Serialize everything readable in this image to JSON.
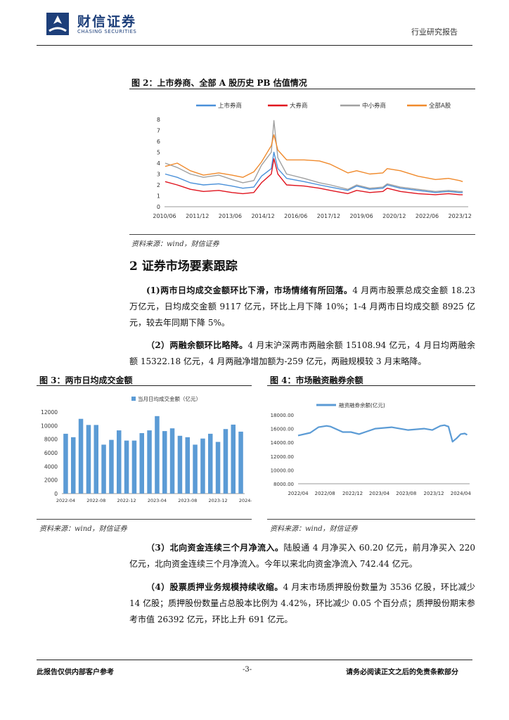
{
  "header": {
    "logo_cn": "财信证券",
    "logo_en": "CHASING SECURITIES",
    "report_type": "行业研究报告"
  },
  "figure2": {
    "title": "图 2：上市券商、全部 A 股历史 PB 估值情况",
    "source": "资料来源：wind，财信证券",
    "chart_data": {
      "type": "line",
      "legend_position": "top",
      "series": [
        {
          "name": "上市券商",
          "color": "#4a90d9",
          "x": [
            2010.45,
            2011.0,
            2011.6,
            2012.2,
            2012.9,
            2013.5,
            2014.0,
            2014.5,
            2014.85,
            2015.3,
            2015.42,
            2015.6,
            2016.0,
            2016.8,
            2017.5,
            2018.0,
            2018.8,
            2019.2,
            2019.8,
            2020.4,
            2020.6,
            2021.2,
            2022.0,
            2022.8,
            2023.4,
            2023.9,
            2024.05
          ],
          "y": [
            3.0,
            2.7,
            2.2,
            2.0,
            2.1,
            1.9,
            1.7,
            1.8,
            2.8,
            3.5,
            5.0,
            3.5,
            2.6,
            2.3,
            2.0,
            1.8,
            1.5,
            1.9,
            1.6,
            1.7,
            2.0,
            1.7,
            1.5,
            1.3,
            1.4,
            1.3,
            1.3
          ]
        },
        {
          "name": "大券商",
          "color": "#e0141e",
          "x": [
            2010.45,
            2011.0,
            2011.6,
            2012.2,
            2012.9,
            2013.5,
            2014.0,
            2014.5,
            2014.85,
            2015.3,
            2015.42,
            2015.6,
            2016.0,
            2016.8,
            2017.5,
            2018.0,
            2018.8,
            2019.2,
            2019.8,
            2020.4,
            2020.6,
            2021.2,
            2022.0,
            2022.8,
            2023.4,
            2023.9,
            2024.05
          ],
          "y": [
            2.3,
            2.0,
            1.6,
            1.4,
            1.5,
            1.3,
            1.2,
            1.3,
            2.2,
            3.0,
            4.4,
            3.0,
            2.0,
            1.9,
            1.7,
            1.5,
            1.2,
            1.5,
            1.3,
            1.4,
            1.7,
            1.4,
            1.2,
            1.1,
            1.2,
            1.1,
            1.1
          ]
        },
        {
          "name": "中小券商",
          "color": "#a0a0a0",
          "x": [
            2010.45,
            2011.0,
            2011.6,
            2012.2,
            2012.9,
            2013.5,
            2014.0,
            2014.5,
            2014.85,
            2015.3,
            2015.42,
            2015.6,
            2016.0,
            2016.8,
            2017.5,
            2018.0,
            2018.8,
            2019.2,
            2019.8,
            2020.4,
            2020.6,
            2021.2,
            2022.0,
            2022.8,
            2023.4,
            2023.9,
            2024.05
          ],
          "y": [
            4.0,
            3.6,
            3.0,
            2.7,
            2.9,
            2.5,
            2.2,
            2.4,
            3.8,
            5.0,
            7.9,
            4.5,
            3.0,
            2.6,
            2.2,
            2.0,
            1.6,
            2.0,
            1.7,
            1.8,
            2.1,
            1.8,
            1.6,
            1.4,
            1.5,
            1.4,
            1.4
          ]
        },
        {
          "name": "全部A股",
          "color": "#f08a2c",
          "x": [
            2010.45,
            2011.0,
            2011.6,
            2012.2,
            2012.9,
            2013.5,
            2014.0,
            2014.5,
            2014.85,
            2015.3,
            2015.42,
            2015.6,
            2016.0,
            2016.8,
            2017.5,
            2018.0,
            2018.8,
            2019.2,
            2019.8,
            2020.4,
            2020.6,
            2021.2,
            2022.0,
            2022.8,
            2023.4,
            2023.9,
            2024.05
          ],
          "y": [
            3.7,
            4.0,
            3.3,
            2.9,
            3.1,
            2.9,
            2.7,
            3.2,
            4.1,
            5.6,
            6.6,
            5.2,
            4.3,
            4.3,
            4.2,
            3.9,
            3.1,
            3.3,
            3.0,
            3.1,
            3.5,
            3.3,
            2.8,
            2.5,
            2.6,
            2.4,
            2.3
          ]
        }
      ],
      "x_tick_labels": [
        "2010/06",
        "2011/12",
        "2013/06",
        "2014/12",
        "2016/06",
        "2017/12",
        "2019/06",
        "2020/12",
        "2022/06",
        "2023/12"
      ],
      "x_tick_values": [
        2010.42,
        2011.92,
        2013.42,
        2014.92,
        2016.42,
        2017.92,
        2019.42,
        2020.92,
        2022.42,
        2023.92
      ],
      "y_tick_labels": [
        "0",
        "1",
        "2",
        "3",
        "4",
        "5",
        "6",
        "7",
        "8"
      ],
      "xlim": [
        2010.42,
        2024.3
      ],
      "ylim": [
        0,
        8
      ]
    }
  },
  "section2": {
    "title": "2 证券市场要素跟踪",
    "p1_bold": "(1)两市日均成交金额环比下滑，市场情绪有所回落。",
    "p1_text": "4 月两市股票总成交金额 18.23 万亿元，日均成交金额 9117 亿元，环比上月下降 10%；1-4 月两市日均成交额 8925 亿元，较去年同期下降 5%。",
    "p2_bold": "（2）两融余额环比略降。",
    "p2_text": "4 月末沪深两市两融余额 15108.94 亿元，4 月日均两融余额 15322.18 亿元，4 月两融净增加额为-259 亿元，两融规模较 3 月末略降。",
    "p3_bold": "（3）北向资金连续三个月净流入。",
    "p3_text": "陆股通 4 月净买入 60.20 亿元，前月净买入 220 亿元，北向资金连续三个月净流入。今年以来北向资金净流入 742.44 亿元。",
    "p4_bold": "（4）股票质押业务规模持续收缩。",
    "p4_text": "4 月末市场质押股份数量为 3536 亿股，环比减少 14 亿股；质押股份数量占总股本比例为 4.42%，环比减少 0.05 个百分点；质押股份期末参考市值 26392 亿元，环比上升 691 亿元。"
  },
  "figure3": {
    "title": "图 3：两市日均成交金额",
    "source": "资料来源：wind，财信证券",
    "chart_data": {
      "type": "bar",
      "color": "#5b9bd5",
      "legend_position": "top",
      "series_name": "当月日均成交金额（亿元）",
      "values": [
        8800,
        8300,
        11000,
        10100,
        10100,
        7200,
        7900,
        9300,
        7800,
        7800,
        8900,
        9300,
        11400,
        9200,
        9600,
        8500,
        8300,
        7200,
        8100,
        8800,
        7600,
        9500,
        10150,
        9117
      ],
      "x_tick_labels": [
        "2022-04",
        "2022-08",
        "2022-12",
        "2023-04",
        "2023-08",
        "2023-12",
        "2024-04"
      ],
      "y_tick_labels": [
        "0",
        "2000",
        "4000",
        "6000",
        "8000",
        "10000",
        "12000"
      ],
      "ylim": [
        0,
        12000
      ]
    }
  },
  "figure4": {
    "title": "图 4：市场融资融券余额",
    "source": "资料来源：wind，财信证券",
    "chart_data": {
      "type": "line",
      "color": "#5b9bd5",
      "legend_position": "top",
      "series_name": "融资融券余额(亿元)",
      "x": [
        2022.25,
        2022.4,
        2022.5,
        2022.6,
        2022.65,
        2022.8,
        2022.9,
        2023.0,
        2023.1,
        2023.2,
        2023.3,
        2023.4,
        2023.5,
        2023.6,
        2023.7,
        2023.8,
        2023.9,
        2024.0,
        2024.05,
        2024.1,
        2024.15,
        2024.2,
        2024.25,
        2024.3,
        2024.33
      ],
      "y": [
        15000,
        15400,
        16200,
        16400,
        16300,
        15500,
        15500,
        15200,
        15600,
        16000,
        16100,
        16200,
        16000,
        15800,
        15900,
        16000,
        15800,
        16400,
        16500,
        16300,
        14100,
        14600,
        15200,
        15300,
        15100
      ],
      "x_tick_labels": [
        "2022/04",
        "2022/08",
        "2022/12",
        "2023/04",
        "2023/08",
        "2023/12",
        "2024/04"
      ],
      "x_tick_values": [
        2022.25,
        2022.58,
        2022.92,
        2023.25,
        2023.58,
        2023.92,
        2024.25
      ],
      "y_tick_labels": [
        "8000.00",
        "10000.00",
        "12000.00",
        "14000.00",
        "16000.00",
        "18000.00"
      ],
      "xlim": [
        2022.25,
        2024.36
      ],
      "ylim": [
        8000,
        18000
      ]
    }
  },
  "footer": {
    "left": "此报告仅供内部客户参考",
    "page": "-3-",
    "right": "请务必阅读正文之后的免责条款部分"
  }
}
